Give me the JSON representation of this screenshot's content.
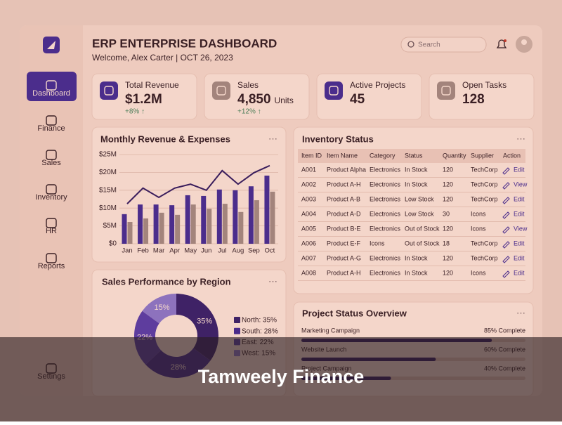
{
  "header": {
    "title": "ERP ENTERPRISE DASHBOARD",
    "subtitle": "Welcome, Alex Carter | OCT 26, 2023",
    "search": "Search"
  },
  "nav": [
    "Dashboard",
    "Finance",
    "Sales",
    "Inventory",
    "HR",
    "Reports",
    "Settings"
  ],
  "kpis": [
    {
      "label": "Total Revenue",
      "value": "$1.2M",
      "change": "+8% ↑"
    },
    {
      "label": "Sales",
      "value": "4,850",
      "unit": "Units",
      "change": "+12% ↑"
    },
    {
      "label": "Active Projects",
      "value": "45"
    },
    {
      "label": "Open Tasks",
      "value": "128"
    }
  ],
  "revenue_chart": {
    "type": "bar+line",
    "title": "Monthly Revenue & Expenses",
    "categories": [
      "Jan",
      "Feb",
      "Mar",
      "Apr",
      "May",
      "Jun",
      "Jul",
      "Aug",
      "Sep",
      "Oct"
    ],
    "series": [
      {
        "color": "#4b2d8c",
        "values": [
          8.3,
          11,
          11,
          10.8,
          13.6,
          13.4,
          15.2,
          15,
          16.1,
          19.1
        ]
      },
      {
        "color": "#a3847c",
        "values": [
          6.1,
          7.1,
          8.7,
          8.1,
          11,
          9.8,
          11.2,
          8.9,
          12.2,
          14.6
        ]
      },
      {
        "color": "#3a1d5c",
        "values": [
          11.2,
          15.6,
          13,
          15.6,
          16.7,
          15,
          20.5,
          16.7,
          19.9,
          21.9
        ],
        "kind": "line"
      }
    ],
    "ylim": [
      0,
      25
    ],
    "yticks": [
      {
        "value": 0,
        "label": "$0"
      },
      {
        "value": 5,
        "label": "$5M"
      },
      {
        "value": 10,
        "label": "$10M"
      },
      {
        "value": 15,
        "label": "$15M"
      },
      {
        "value": 20,
        "label": "$20M"
      },
      {
        "value": 25,
        "label": "$25M"
      }
    ]
  },
  "inventory": {
    "title": "Inventory Status",
    "columns": [
      "Item ID",
      "Item Name",
      "Category",
      "Status",
      "Quantity",
      "Supplier",
      "Action"
    ],
    "rows": [
      [
        "A001",
        "Product Alpha",
        "Electronics",
        "In Stock",
        "120",
        "TechCorp",
        "Edit"
      ],
      [
        "A002",
        "Product A-H",
        "Electronics",
        "In Stock",
        "120",
        "TechCorp",
        "View"
      ],
      [
        "A003",
        "Product A-B",
        "Electronics",
        "Low Stock",
        "120",
        "TechCorp",
        "Edit"
      ],
      [
        "A004",
        "Product A-D",
        "Electronics",
        "Low Stock",
        "30",
        "Icons",
        "Edit"
      ],
      [
        "A005",
        "Product B-E",
        "Electronics",
        "Out of Stock",
        "120",
        "Icons",
        "View"
      ],
      [
        "A006",
        "Product E-F",
        "Icons",
        "Out of Stock",
        "18",
        "TechCorp",
        "Edit"
      ],
      [
        "A007",
        "Product A-G",
        "Electronics",
        "In Stock",
        "120",
        "TechCorp",
        "Edit"
      ],
      [
        "A008",
        "Product A-H",
        "Electronics",
        "In Stock",
        "120",
        "Icons",
        "Edit"
      ]
    ]
  },
  "sales_chart": {
    "type": "donut",
    "title": "Sales Performance by Region",
    "segments": [
      {
        "label": "North: 35%",
        "value": 35,
        "value_label": "35%",
        "color": "#3f2266"
      },
      {
        "label": "South: 28%",
        "value": 28,
        "value_label": "28%",
        "color": "#4a2a8a"
      },
      {
        "label": "East: 22%",
        "value": 22,
        "value_label": "22%",
        "color": "#5e3d9e"
      },
      {
        "label": "West: 15%",
        "value": 15,
        "value_label": "15%",
        "color": "#8d72bd"
      }
    ]
  },
  "projects": {
    "title": "Project Status Overview",
    "items": [
      {
        "name": "Marketing Campaign",
        "value": 85,
        "value_label": "85% Complete"
      },
      {
        "name": "Website Launch",
        "value": 60,
        "value_label": "60% Complete"
      },
      {
        "name": "Project Campaign",
        "value": 40,
        "value_label": "40% Complete"
      }
    ]
  },
  "banner": "Tamweely Finance"
}
